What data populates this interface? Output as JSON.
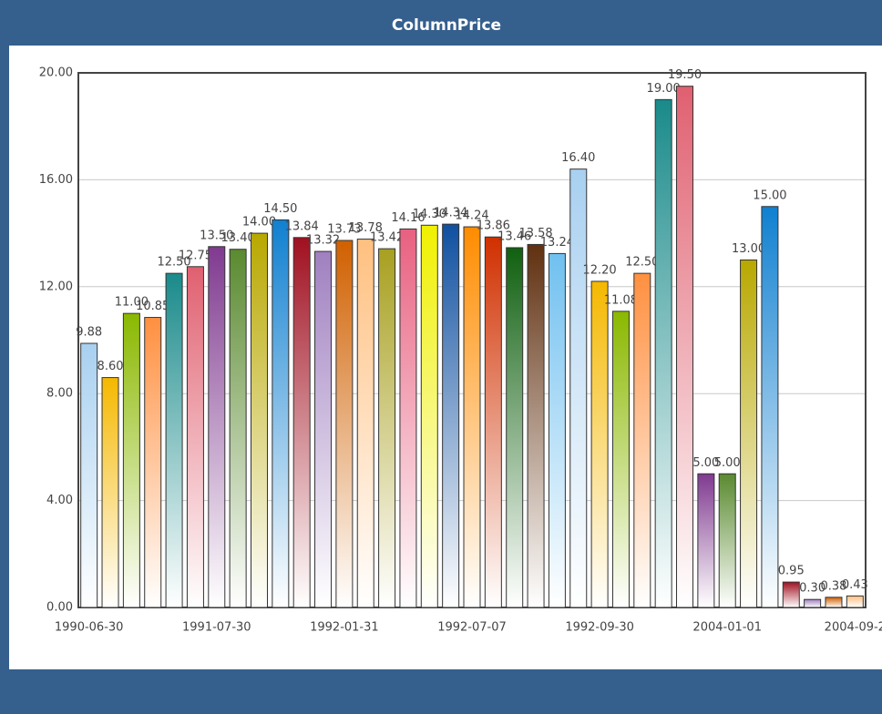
{
  "chart_data": {
    "type": "bar",
    "title": "ColumnPrice",
    "categories": [
      "1990-06-30",
      null,
      null,
      null,
      null,
      null,
      "1991-07-30",
      null,
      null,
      null,
      null,
      null,
      "1992-01-31",
      null,
      null,
      null,
      null,
      null,
      "1992-07-07",
      null,
      null,
      null,
      null,
      null,
      "1992-09-30",
      null,
      null,
      null,
      null,
      null,
      "2004-01-01",
      null,
      null,
      null,
      null,
      null,
      "2004-09-2"
    ],
    "values": [
      9.88,
      8.6,
      11,
      10.85,
      12.5,
      12.75,
      13.5,
      13.4,
      14,
      14.5,
      13.84,
      13.32,
      13.73,
      13.78,
      13.42,
      14.16,
      14.3,
      14.34,
      14.24,
      13.86,
      13.46,
      13.58,
      13.24,
      16.4,
      12.2,
      11.08,
      12.5,
      19,
      19.5,
      5,
      5,
      13,
      15,
      0.95,
      0.3,
      0.38,
      0.43
    ],
    "value_labels": [
      "9.88",
      "8.60",
      "11.00",
      "10.85",
      "12.50",
      "12.75",
      "13.50",
      "13.40",
      "14.00",
      "14.50",
      "13.84",
      "13.32",
      "13.73",
      "13.78",
      "13.42",
      "14.16",
      "14.30",
      "14.34",
      "14.24",
      "13.86",
      "13.46",
      "13.58",
      "13.24",
      "16.40",
      "12.20",
      "11.08",
      "12.50",
      "19.00",
      "19.50",
      "5.00",
      "5.00",
      "13.00",
      "15.00",
      "0.95",
      "0.30",
      "0.38",
      "0.43"
    ],
    "colors": [
      "#a8d0f0",
      "#f5b800",
      "#8ab800",
      "#ff9040",
      "#1a8a8a",
      "#e06070",
      "#803a90",
      "#5a8a30",
      "#b8a800",
      "#1080d0",
      "#a01020",
      "#a080c0",
      "#d06000",
      "#ffc080",
      "#a8a020",
      "#e86080",
      "#f0f000",
      "#1050a0",
      "#ff8c00",
      "#d03000",
      "#106010",
      "#603010",
      "#70c0f0"
    ],
    "ylim": [
      0,
      20
    ],
    "yticks": [
      {
        "value": 0,
        "label": "0.00"
      },
      {
        "value": 4,
        "label": "4.00"
      },
      {
        "value": 8,
        "label": "8.00"
      },
      {
        "value": 12,
        "label": "12.00"
      },
      {
        "value": 16,
        "label": "16.00"
      },
      {
        "value": 20,
        "label": "20.00"
      }
    ],
    "grid": true
  }
}
